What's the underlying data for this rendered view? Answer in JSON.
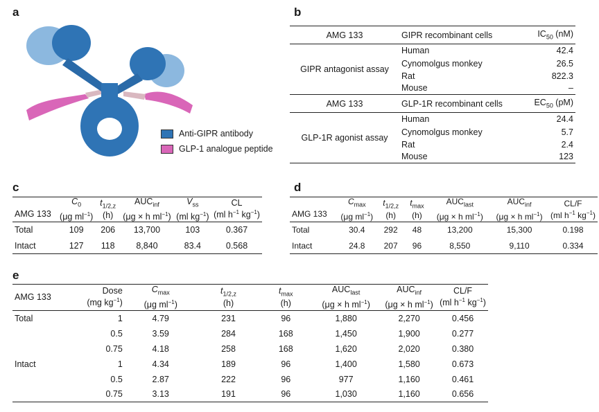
{
  "panels": {
    "a": "a",
    "b": "b",
    "c": "c",
    "d": "d",
    "e": "e"
  },
  "legend": {
    "antibody": "Anti-GIPR antibody",
    "peptide": "GLP-1 analogue peptide",
    "antibody_color": "#2f74b5",
    "peptide_color": "#d966b8"
  },
  "b": {
    "sec1": {
      "h1": "AMG 133",
      "h2": "GIPR recombinant cells",
      "h3_main": "IC",
      "h3_sub": "50",
      "h3_unit": " (nM)",
      "assay": "GIPR antagonist assay",
      "rows": [
        [
          "Human",
          "42.4"
        ],
        [
          "Cynomolgus monkey",
          "26.5"
        ],
        [
          "Rat",
          "822.3"
        ],
        [
          "Mouse",
          "–"
        ]
      ]
    },
    "sec2": {
      "h1": "AMG 133",
      "h2": "GLP-1R recombinant cells",
      "h3_main": "EC",
      "h3_sub": "50",
      "h3_unit": " (pM)",
      "assay": "GLP-1R agonist assay",
      "rows": [
        [
          "Human",
          "24.4"
        ],
        [
          "Cynomolgus monkey",
          "5.7"
        ],
        [
          "Rat",
          "2.4"
        ],
        [
          "Mouse",
          "123"
        ]
      ]
    }
  },
  "c": {
    "col0": "AMG 133",
    "h": {
      "c0a": "C",
      "c0b": "0",
      "c0c": "(μg ml",
      "c0d": "−1",
      "c0e": ")",
      "t": "t",
      "tsub": "1/2,z",
      "tunit": "(h)",
      "auc": "AUC",
      "aucsub": "inf",
      "aucunit": "(μg × h ml",
      "aucsup": "−1",
      "aucend": ")",
      "v": "V",
      "vsub": "ss",
      "vunit": "(ml kg",
      "vsup": "−1",
      "vend": ")",
      "cl": "CL",
      "clunit": "(ml h",
      "clsup1": "−1",
      "clmid": " kg",
      "clsup2": "−1",
      "clend": ")"
    },
    "rows": [
      [
        "Total",
        "109",
        "206",
        "13,700",
        "103",
        "0.367"
      ],
      [
        "Intact",
        "127",
        "118",
        "8,840",
        "83.4",
        "0.568"
      ]
    ]
  },
  "d": {
    "col0": "AMG 133",
    "h": {
      "cmax": "C",
      "cmaxsub": "max",
      "cmaxunit": "(μg ml",
      "cmaxsup": "−1",
      "cmaxend": ")",
      "t": "t",
      "tsub": "1/2,z",
      "tunit": "(h)",
      "tmax": "t",
      "tmaxsub": "max",
      "tmaxunit": "(h)",
      "auclast": "AUC",
      "auclastsub": "last",
      "auclastunit": "(μg × h ml",
      "auclastsup": "−1",
      "auclastend": ")",
      "aucinf": "AUC",
      "aucinfsub": "inf",
      "aucinfunit": "(μg × h ml",
      "aucinfsup": "−1",
      "aucinfend": ")",
      "cl": "CL/F",
      "clunit": "(ml h",
      "clsup1": "−1",
      "clmid": " kg",
      "clsup2": "−1",
      "clend": ")"
    },
    "rows": [
      [
        "Total",
        "30.4",
        "292",
        "48",
        "13,200",
        "15,300",
        "0.198"
      ],
      [
        "Intact",
        "24.8",
        "207",
        "96",
        "8,550",
        "9,110",
        "0.334"
      ]
    ]
  },
  "e": {
    "col0": "AMG 133",
    "h": {
      "dose": "Dose",
      "doseunit": "(mg kg",
      "dosesup": "−1",
      "doseend": ")",
      "cmax": "C",
      "cmaxsub": "max",
      "cmaxunit": "(μg ml",
      "cmaxsup": "−1",
      "cmaxend": ")",
      "t": "t",
      "tsub": "1/2,z",
      "tunit": "(h)",
      "tmax": "t",
      "tmaxsub": "max",
      "tmaxunit": "(h)",
      "auclast": "AUC",
      "auclastsub": "last",
      "auclastunit": "(μg × h ml",
      "auclastsup": "−1",
      "auclastend": ")",
      "aucinf": "AUC",
      "aucinfsub": "inf",
      "aucinfunit": "(μg × h ml",
      "aucinfsup": "−1",
      "aucinfend": ")",
      "cl": "CL/F",
      "clunit": "(ml h",
      "clsup1": "−1",
      "clmid": " kg",
      "clsup2": "−1",
      "clend": ")"
    },
    "rows": [
      [
        "Total",
        "1",
        "4.79",
        "231",
        "96",
        "1,880",
        "2,270",
        "0.456"
      ],
      [
        "",
        "0.5",
        "3.59",
        "284",
        "168",
        "1,450",
        "1,900",
        "0.277"
      ],
      [
        "",
        "0.75",
        "4.18",
        "258",
        "168",
        "1,620",
        "2,020",
        "0.380"
      ],
      [
        "Intact",
        "1",
        "4.34",
        "189",
        "96",
        "1,400",
        "1,580",
        "0.673"
      ],
      [
        "",
        "0.5",
        "2.87",
        "222",
        "96",
        "977",
        "1,160",
        "0.461"
      ],
      [
        "",
        "0.75",
        "3.13",
        "191",
        "96",
        "1,030",
        "1,160",
        "0.656"
      ]
    ]
  }
}
